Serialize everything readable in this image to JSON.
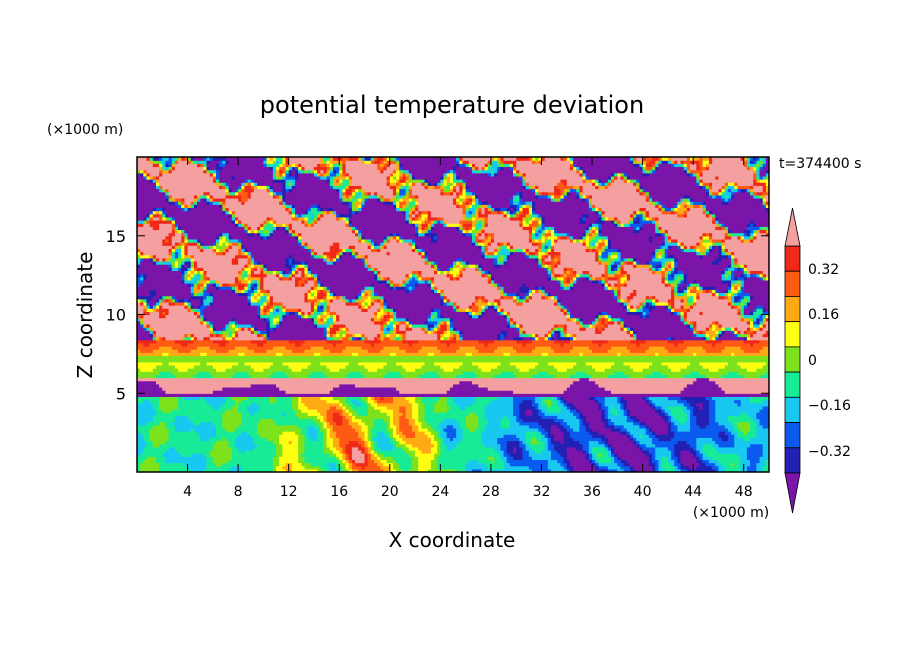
{
  "chart_data": {
    "type": "heatmap",
    "title": "potential temperature deviation",
    "xlabel": "X coordinate",
    "ylabel": "Z coordinate",
    "x_unit": "(×1000 m)",
    "y_unit": "(×1000 m)",
    "time_label": "t=374400 s",
    "xlim": [
      0,
      50
    ],
    "ylim": [
      0,
      20
    ],
    "x_ticks": [
      4,
      8,
      12,
      16,
      20,
      24,
      28,
      32,
      36,
      40,
      44,
      48
    ],
    "y_ticks": [
      5,
      10,
      15
    ],
    "colorbar": {
      "ticks": [
        "0.32",
        "0.16",
        "0",
        "-0.16",
        "-0.32"
      ],
      "tick_values": [
        0.32,
        0.16,
        0,
        -0.16,
        -0.32
      ],
      "levels": [
        -0.4,
        -0.32,
        -0.24,
        -0.16,
        -0.08,
        0,
        0.08,
        0.16,
        0.24,
        0.32,
        0.4
      ],
      "colors": [
        "#7b14a8",
        "#2320b4",
        "#0a5af0",
        "#18c8f0",
        "#18eb96",
        "#7de21c",
        "#ffff14",
        "#ffaa14",
        "#ff5a14",
        "#ef2818",
        "#f5a0a0"
      ],
      "extend": "both"
    },
    "layers": [
      {
        "z_range": [
          13,
          20
        ],
        "pattern": "upper alternating bands of large positive and negative patches",
        "dominant_values": [
          0.4,
          -0.4
        ]
      },
      {
        "z_range": [
          8.5,
          13
        ],
        "pattern": "mixed positive/negative with transition bands",
        "dominant_values": [
          -0.4,
          0.4
        ]
      },
      {
        "z_range": [
          6,
          8.5
        ],
        "pattern": "horizontal stratified bands",
        "dominant_values": [
          0.3,
          0.2,
          0.1,
          0.0
        ]
      },
      {
        "z_range": [
          5,
          6
        ],
        "pattern": "positive band with negative humps",
        "dominant_values": [
          0.4,
          -0.4
        ]
      },
      {
        "z_range": [
          0,
          5
        ],
        "pattern": "turbulent convective eddies, positive plumes x 10-26, negative cells x 26-48",
        "dominant_values": [
          -0.2,
          0.3,
          -0.35
        ]
      }
    ],
    "grid": false
  }
}
